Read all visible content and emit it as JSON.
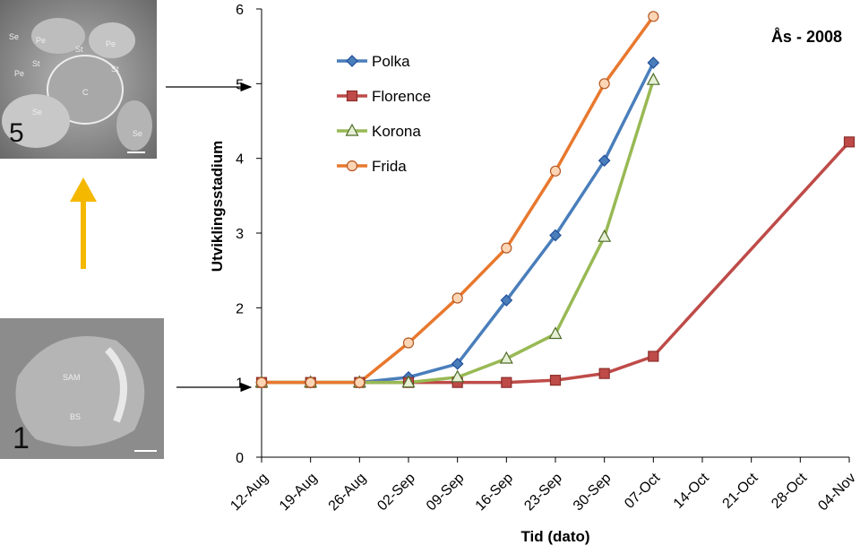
{
  "chart_data": {
    "type": "line",
    "title": "Ås - 2008",
    "x_label": "Tid (dato)",
    "y_label": "Utviklingsstadium",
    "categories": [
      "12-Aug",
      "19-Aug",
      "26-Aug",
      "02-Sep",
      "09-Sep",
      "16-Sep",
      "23-Sep",
      "30-Sep",
      "07-Oct",
      "14-Oct",
      "21-Oct",
      "28-Oct",
      "04-Nov"
    ],
    "ylim": [
      0,
      6
    ],
    "yticks": [
      0,
      1,
      2,
      3,
      4,
      5,
      6
    ],
    "series": [
      {
        "name": "Polka",
        "color": "#4a7ebb",
        "marker": "diamond",
        "x": [
          "12-Aug",
          "19-Aug",
          "26-Aug",
          "02-Sep",
          "09-Sep",
          "16-Sep",
          "23-Sep",
          "30-Sep",
          "07-Oct"
        ],
        "values": [
          1,
          1,
          1,
          1.07,
          1.25,
          2.1,
          2.97,
          3.97,
          5.28
        ]
      },
      {
        "name": "Florence",
        "color": "#be4b48",
        "marker": "square",
        "x": [
          "12-Aug",
          "19-Aug",
          "26-Aug",
          "02-Sep",
          "09-Sep",
          "16-Sep",
          "23-Sep",
          "30-Sep",
          "07-Oct",
          "04-Nov"
        ],
        "values": [
          1,
          1,
          1,
          1,
          1,
          1,
          1.03,
          1.12,
          1.35,
          4.22
        ]
      },
      {
        "name": "Korona",
        "color": "#98b954",
        "marker": "triangle",
        "x": [
          "12-Aug",
          "19-Aug",
          "26-Aug",
          "02-Sep",
          "09-Sep",
          "16-Sep",
          "23-Sep",
          "30-Sep",
          "07-Oct"
        ],
        "values": [
          1,
          1,
          1,
          1,
          1.07,
          1.32,
          1.65,
          2.95,
          5.05
        ]
      },
      {
        "name": "Frida",
        "color": "#e8782e",
        "marker": "circle",
        "x": [
          "12-Aug",
          "19-Aug",
          "26-Aug",
          "02-Sep",
          "09-Sep",
          "16-Sep",
          "23-Sep",
          "30-Sep",
          "07-Oct"
        ],
        "values": [
          1,
          1,
          1,
          1.53,
          2.13,
          2.8,
          3.83,
          5.0,
          5.9
        ]
      }
    ]
  },
  "images": [
    {
      "label": "5",
      "annotations": [
        "Se",
        "Pe",
        "St",
        "Pe",
        "St",
        "C",
        "Se",
        "Pe",
        "St",
        "Se"
      ]
    },
    {
      "label": "1",
      "annotations": [
        "SAM",
        "BS"
      ]
    }
  ]
}
